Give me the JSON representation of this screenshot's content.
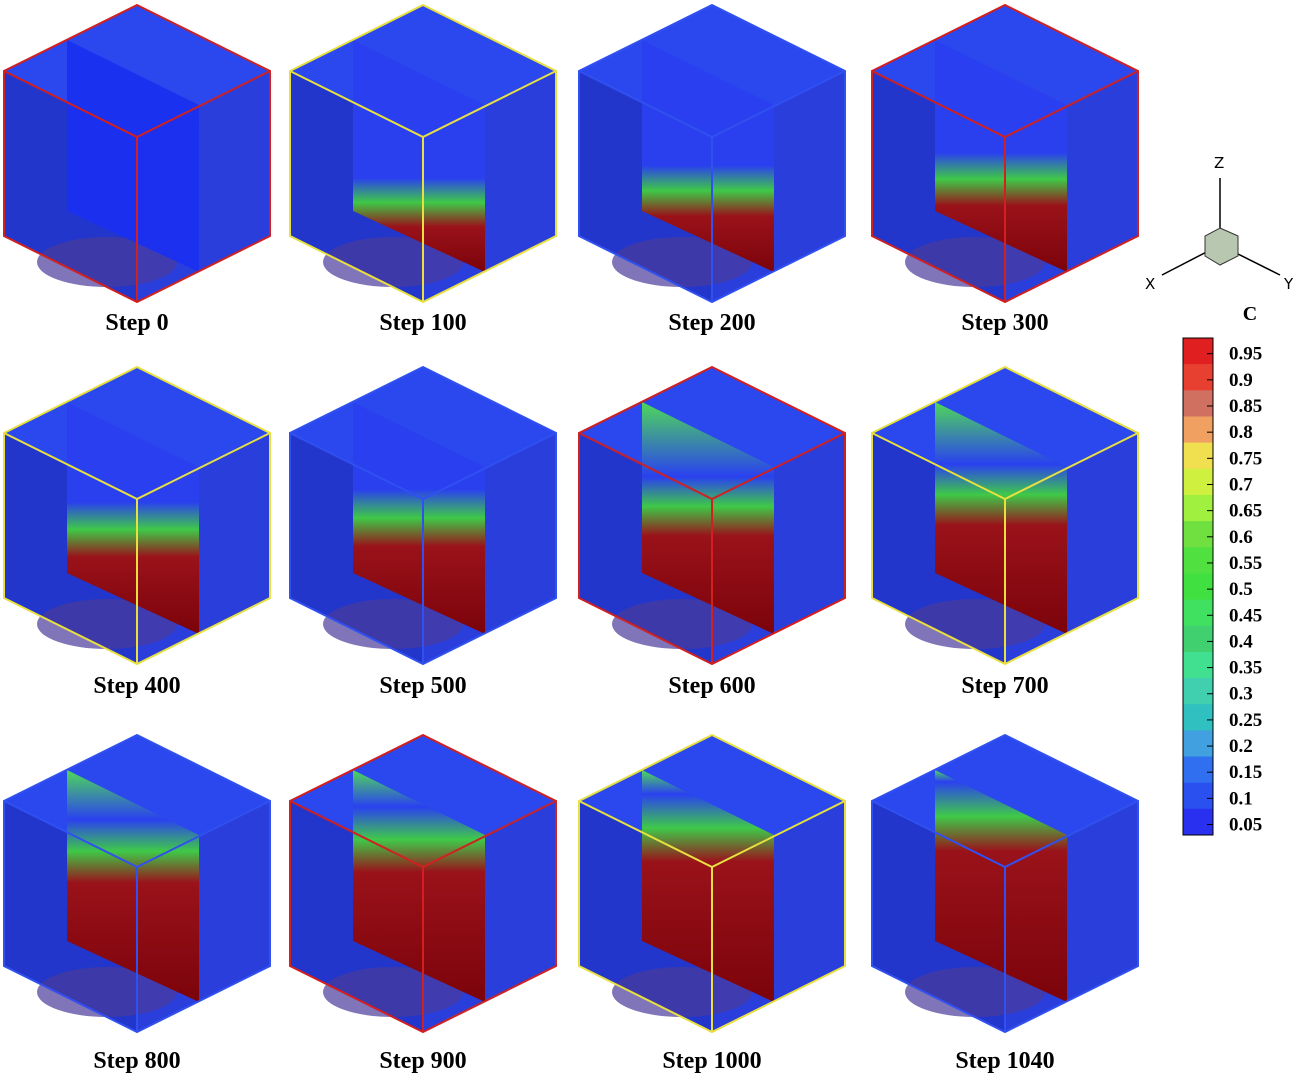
{
  "panels": [
    {
      "label": "Step 0"
    },
    {
      "label": "Step 100"
    },
    {
      "label": "Step 200"
    },
    {
      "label": "Step 300"
    },
    {
      "label": "Step 400"
    },
    {
      "label": "Step 500"
    },
    {
      "label": "Step 600"
    },
    {
      "label": "Step 700"
    },
    {
      "label": "Step 800"
    },
    {
      "label": "Step 900"
    },
    {
      "label": "Step 1000"
    },
    {
      "label": "Step 1040"
    }
  ],
  "triad": {
    "z": "Z",
    "x": "X",
    "y": "Y"
  },
  "colorbar": {
    "title": "C",
    "labels": [
      "0.95",
      "0.9",
      "0.85",
      "0.8",
      "0.75",
      "0.7",
      "0.65",
      "0.6",
      "0.55",
      "0.5",
      "0.45",
      "0.4",
      "0.35",
      "0.3",
      "0.25",
      "0.2",
      "0.15",
      "0.1",
      "0.05"
    ]
  }
}
